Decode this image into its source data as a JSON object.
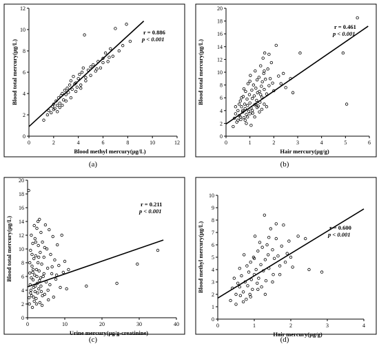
{
  "chart_data": [
    {
      "id": "a",
      "type": "scatter",
      "caption": "(a)",
      "xlabel": "Blood methyl mercury(μg/L)",
      "ylabel": "Blood total mercury(μg/L)",
      "xlim": [
        0,
        12
      ],
      "ylim": [
        0,
        12
      ],
      "xticks": [
        0,
        2,
        4,
        6,
        8,
        10,
        12
      ],
      "yticks": [
        0,
        2,
        4,
        6,
        8,
        10,
        12
      ],
      "stat_r": "r = 0.886",
      "stat_p": "p < 0.001",
      "fit": {
        "x": [
          0,
          9.3
        ],
        "y": [
          0.9,
          10.8
        ]
      },
      "points": [
        [
          1.2,
          1.5
        ],
        [
          1.5,
          2.0
        ],
        [
          1.6,
          2.4
        ],
        [
          1.8,
          2.2
        ],
        [
          1.9,
          2.8
        ],
        [
          2.0,
          3.0
        ],
        [
          2.1,
          2.6
        ],
        [
          2.2,
          3.3
        ],
        [
          2.3,
          2.9
        ],
        [
          2.4,
          3.6
        ],
        [
          2.5,
          3.1
        ],
        [
          2.6,
          3.8
        ],
        [
          2.7,
          4.0
        ],
        [
          2.8,
          3.4
        ],
        [
          2.9,
          4.3
        ],
        [
          3.0,
          3.9
        ],
        [
          3.1,
          4.5
        ],
        [
          3.2,
          4.1
        ],
        [
          3.3,
          4.8
        ],
        [
          3.4,
          5.2
        ],
        [
          3.5,
          4.4
        ],
        [
          3.6,
          5.6
        ],
        [
          3.7,
          4.9
        ],
        [
          3.8,
          5.0
        ],
        [
          3.9,
          4.6
        ],
        [
          4.0,
          5.4
        ],
        [
          4.1,
          5.8
        ],
        [
          4.2,
          4.5
        ],
        [
          4.3,
          6.0
        ],
        [
          4.4,
          6.4
        ],
        [
          4.5,
          9.5
        ],
        [
          4.6,
          5.5
        ],
        [
          4.8,
          6.2
        ],
        [
          5.0,
          6.5
        ],
        [
          5.2,
          6.7
        ],
        [
          5.4,
          6.1
        ],
        [
          5.6,
          7.0
        ],
        [
          5.8,
          6.4
        ],
        [
          6.0,
          7.3
        ],
        [
          6.2,
          7.8
        ],
        [
          6.4,
          7.0
        ],
        [
          6.6,
          8.2
        ],
        [
          6.8,
          7.5
        ],
        [
          7.0,
          10.1
        ],
        [
          7.3,
          8.0
        ],
        [
          7.6,
          8.5
        ],
        [
          7.9,
          10.5
        ],
        [
          8.2,
          8.9
        ],
        [
          2.3,
          2.3
        ],
        [
          2.7,
          2.9
        ],
        [
          3.0,
          3.3
        ],
        [
          3.4,
          3.6
        ],
        [
          3.8,
          4.2
        ],
        [
          4.2,
          4.8
        ],
        [
          4.6,
          5.2
        ],
        [
          5.0,
          5.7
        ],
        [
          5.5,
          6.3
        ],
        [
          6.0,
          6.9
        ],
        [
          6.5,
          7.4
        ],
        [
          2.0,
          2.5
        ],
        [
          2.5,
          2.7
        ]
      ]
    },
    {
      "id": "b",
      "type": "scatter",
      "caption": "(b)",
      "xlabel": "Hair mercury(μg/g)",
      "ylabel": "Blood total mercury(μg/L)",
      "xlim": [
        0,
        6
      ],
      "ylim": [
        0,
        20
      ],
      "xticks": [
        0,
        1,
        2,
        3,
        4,
        5,
        6
      ],
      "yticks": [
        0,
        2,
        4,
        6,
        8,
        10,
        12,
        14,
        16,
        18,
        20
      ],
      "stat_r": "r = 0.461",
      "stat_p": "p < 0.001",
      "fit": {
        "x": [
          0,
          5.95
        ],
        "y": [
          1.9,
          17.2
        ]
      },
      "points": [
        [
          0.3,
          1.5
        ],
        [
          0.35,
          2.8
        ],
        [
          0.4,
          3.5
        ],
        [
          0.45,
          2.2
        ],
        [
          0.5,
          4.0
        ],
        [
          0.55,
          3.2
        ],
        [
          0.6,
          5.5
        ],
        [
          0.62,
          2.6
        ],
        [
          0.65,
          4.6
        ],
        [
          0.7,
          3.8
        ],
        [
          0.72,
          6.2
        ],
        [
          0.75,
          2.9
        ],
        [
          0.78,
          5.0
        ],
        [
          0.8,
          4.3
        ],
        [
          0.82,
          7.0
        ],
        [
          0.85,
          3.4
        ],
        [
          0.88,
          5.8
        ],
        [
          0.9,
          4.8
        ],
        [
          0.92,
          8.2
        ],
        [
          0.95,
          3.9
        ],
        [
          0.98,
          6.5
        ],
        [
          1.0,
          5.2
        ],
        [
          1.02,
          9.5
        ],
        [
          1.05,
          4.4
        ],
        [
          1.08,
          7.2
        ],
        [
          1.1,
          5.9
        ],
        [
          1.12,
          3.6
        ],
        [
          1.15,
          8.0
        ],
        [
          1.18,
          6.3
        ],
        [
          1.2,
          4.9
        ],
        [
          1.22,
          10.2
        ],
        [
          1.25,
          7.5
        ],
        [
          1.28,
          5.6
        ],
        [
          1.3,
          8.8
        ],
        [
          1.32,
          6.8
        ],
        [
          1.35,
          4.7
        ],
        [
          1.38,
          9.2
        ],
        [
          1.4,
          7.0
        ],
        [
          1.42,
          5.3
        ],
        [
          1.45,
          11.0
        ],
        [
          1.48,
          7.8
        ],
        [
          1.5,
          6.1
        ],
        [
          1.52,
          8.5
        ],
        [
          1.55,
          12.2
        ],
        [
          1.58,
          9.8
        ],
        [
          1.6,
          7.3
        ],
        [
          1.62,
          13.0
        ],
        [
          1.65,
          8.9
        ],
        [
          1.7,
          6.6
        ],
        [
          1.75,
          10.5
        ],
        [
          1.8,
          7.9
        ],
        [
          1.85,
          9.0
        ],
        [
          1.9,
          11.5
        ],
        [
          1.95,
          8.3
        ],
        [
          2.0,
          7.1
        ],
        [
          2.1,
          14.2
        ],
        [
          2.2,
          9.4
        ],
        [
          2.3,
          8.2
        ],
        [
          2.5,
          7.6
        ],
        [
          2.7,
          9.0
        ],
        [
          2.8,
          6.8
        ],
        [
          3.1,
          13.0
        ],
        [
          4.9,
          13.0
        ],
        [
          5.05,
          5.0
        ],
        [
          5.5,
          18.5
        ],
        [
          0.5,
          2.5
        ],
        [
          0.6,
          3.0
        ],
        [
          0.7,
          4.0
        ],
        [
          0.8,
          2.5
        ],
        [
          0.9,
          3.0
        ],
        [
          1.0,
          3.5
        ],
        [
          1.1,
          4.0
        ],
        [
          1.2,
          3.0
        ],
        [
          1.3,
          4.5
        ],
        [
          1.4,
          3.8
        ],
        [
          1.5,
          4.2
        ],
        [
          1.6,
          5.0
        ],
        [
          1.7,
          4.6
        ],
        [
          0.4,
          4.6
        ],
        [
          0.55,
          5.0
        ],
        [
          0.65,
          6.0
        ],
        [
          0.75,
          7.4
        ],
        [
          1.0,
          8.6
        ],
        [
          1.25,
          5.0
        ],
        [
          1.45,
          6.5
        ],
        [
          1.6,
          10.2
        ],
        [
          1.8,
          12.8
        ],
        [
          2.4,
          9.8
        ],
        [
          0.85,
          2.0
        ],
        [
          1.05,
          1.7
        ]
      ]
    },
    {
      "id": "c",
      "type": "scatter",
      "caption": "(c)",
      "xlabel": "Urine mercury(μg/g-creatinine)",
      "ylabel": "Blood total mercury(μg/L)",
      "xlim": [
        0,
        40
      ],
      "ylim": [
        0,
        20
      ],
      "xticks": [
        0,
        10,
        20,
        30,
        40
      ],
      "yticks": [
        0,
        2,
        4,
        6,
        8,
        10,
        12,
        14,
        16,
        18,
        20
      ],
      "stat_r": "r = 0.211",
      "stat_p": "p < 0.001",
      "fit": {
        "x": [
          0,
          36.5
        ],
        "y": [
          4.5,
          11.3
        ]
      },
      "points": [
        [
          0.3,
          18.5
        ],
        [
          0.5,
          2.0
        ],
        [
          0.6,
          6.5
        ],
        [
          0.8,
          9.8
        ],
        [
          0.9,
          4.0
        ],
        [
          1.0,
          12.0
        ],
        [
          1.1,
          3.2
        ],
        [
          1.2,
          7.5
        ],
        [
          1.3,
          1.5
        ],
        [
          1.4,
          10.8
        ],
        [
          1.5,
          5.5
        ],
        [
          1.6,
          3.0
        ],
        [
          1.7,
          8.6
        ],
        [
          1.8,
          2.4
        ],
        [
          1.9,
          6.2
        ],
        [
          2.0,
          11.5
        ],
        [
          2.1,
          4.6
        ],
        [
          2.2,
          9.0
        ],
        [
          2.3,
          2.8
        ],
        [
          2.4,
          7.0
        ],
        [
          2.5,
          13.0
        ],
        [
          2.6,
          5.0
        ],
        [
          2.7,
          3.6
        ],
        [
          2.8,
          8.0
        ],
        [
          2.9,
          10.5
        ],
        [
          3.0,
          4.2
        ],
        [
          3.1,
          6.8
        ],
        [
          3.2,
          14.3
        ],
        [
          3.3,
          2.2
        ],
        [
          3.4,
          9.5
        ],
        [
          3.5,
          5.8
        ],
        [
          3.6,
          12.4
        ],
        [
          3.7,
          3.8
        ],
        [
          3.8,
          7.8
        ],
        [
          3.9,
          1.8
        ],
        [
          4.0,
          11.0
        ],
        [
          4.2,
          6.0
        ],
        [
          4.4,
          8.8
        ],
        [
          4.6,
          3.4
        ],
        [
          4.8,
          13.5
        ],
        [
          5.0,
          5.2
        ],
        [
          5.2,
          10.0
        ],
        [
          5.4,
          7.2
        ],
        [
          5.6,
          2.6
        ],
        [
          5.8,
          12.8
        ],
        [
          6.0,
          4.8
        ],
        [
          6.2,
          9.2
        ],
        [
          6.5,
          6.4
        ],
        [
          6.8,
          11.8
        ],
        [
          7.0,
          3.0
        ],
        [
          7.3,
          8.4
        ],
        [
          7.6,
          5.6
        ],
        [
          8.0,
          10.6
        ],
        [
          8.4,
          7.6
        ],
        [
          8.8,
          4.4
        ],
        [
          9.2,
          12.0
        ],
        [
          9.6,
          6.6
        ],
        [
          10.0,
          8.2
        ],
        [
          10.5,
          4.2
        ],
        [
          11.0,
          7.0
        ],
        [
          15.8,
          4.6
        ],
        [
          24.0,
          5.0
        ],
        [
          29.5,
          7.8
        ],
        [
          35.0,
          9.8
        ],
        [
          0.7,
          4.8
        ],
        [
          1.0,
          5.8
        ],
        [
          1.5,
          7.0
        ],
        [
          2.0,
          3.8
        ],
        [
          2.5,
          6.0
        ],
        [
          3.0,
          8.8
        ],
        [
          1.2,
          9.2
        ],
        [
          2.2,
          11.0
        ],
        [
          4.4,
          6.4
        ],
        [
          5.5,
          4.0
        ],
        [
          6.6,
          7.4
        ],
        [
          0.4,
          2.9
        ],
        [
          0.8,
          3.6
        ],
        [
          1.6,
          4.4
        ],
        [
          2.4,
          2.0
        ],
        [
          3.2,
          5.4
        ],
        [
          4.0,
          3.2
        ],
        [
          1.8,
          13.4
        ],
        [
          2.8,
          14.0
        ],
        [
          4.6,
          10.2
        ],
        [
          7.8,
          6.2
        ],
        [
          0.6,
          8.0
        ],
        [
          1.4,
          6.6
        ],
        [
          3.6,
          4.6
        ]
      ]
    },
    {
      "id": "d",
      "type": "scatter",
      "caption": "(d)",
      "xlabel": "Hair mercury(μg/g)",
      "ylabel": "Blood methyl mercury(μg/L)",
      "xlim": [
        0,
        4
      ],
      "ylim": [
        0,
        10
      ],
      "xticks": [
        0,
        1,
        2,
        3,
        4
      ],
      "yticks": [
        0,
        1,
        2,
        3,
        4,
        5,
        6,
        7,
        8,
        9,
        10
      ],
      "stat_r": "r = 0.600",
      "stat_p": "p < 0.001",
      "fit": {
        "x": [
          0,
          4.0
        ],
        "y": [
          1.7,
          8.9
        ]
      },
      "points": [
        [
          0.35,
          1.5
        ],
        [
          0.4,
          2.5
        ],
        [
          0.45,
          3.3
        ],
        [
          0.5,
          1.2
        ],
        [
          0.55,
          2.9
        ],
        [
          0.6,
          4.1
        ],
        [
          0.62,
          1.9
        ],
        [
          0.65,
          3.5
        ],
        [
          0.7,
          2.2
        ],
        [
          0.72,
          5.2
        ],
        [
          0.75,
          3.0
        ],
        [
          0.78,
          1.6
        ],
        [
          0.8,
          4.3
        ],
        [
          0.82,
          2.7
        ],
        [
          0.85,
          3.8
        ],
        [
          0.88,
          2.0
        ],
        [
          0.9,
          4.6
        ],
        [
          0.92,
          3.2
        ],
        [
          0.95,
          2.4
        ],
        [
          0.98,
          5.0
        ],
        [
          1.0,
          3.6
        ],
        [
          1.02,
          6.7
        ],
        [
          1.05,
          4.0
        ],
        [
          1.08,
          2.9
        ],
        [
          1.1,
          5.5
        ],
        [
          1.12,
          3.3
        ],
        [
          1.15,
          6.2
        ],
        [
          1.18,
          4.4
        ],
        [
          1.2,
          2.6
        ],
        [
          1.22,
          5.8
        ],
        [
          1.25,
          3.9
        ],
        [
          1.28,
          8.4
        ],
        [
          1.3,
          4.8
        ],
        [
          1.32,
          3.1
        ],
        [
          1.35,
          6.0
        ],
        [
          1.38,
          5.2
        ],
        [
          1.4,
          4.1
        ],
        [
          1.45,
          7.3
        ],
        [
          1.5,
          5.6
        ],
        [
          1.52,
          3.6
        ],
        [
          1.55,
          4.9
        ],
        [
          1.6,
          6.5
        ],
        [
          1.65,
          5.1
        ],
        [
          1.7,
          4.3
        ],
        [
          1.75,
          5.9
        ],
        [
          1.8,
          7.6
        ],
        [
          1.85,
          4.6
        ],
        [
          1.9,
          5.3
        ],
        [
          1.95,
          6.3
        ],
        [
          2.0,
          5.0
        ],
        [
          2.05,
          4.2
        ],
        [
          2.2,
          6.7
        ],
        [
          2.4,
          6.5
        ],
        [
          2.5,
          4.0
        ],
        [
          2.85,
          3.8
        ],
        [
          0.5,
          2.0
        ],
        [
          0.7,
          1.4
        ],
        [
          0.9,
          1.8
        ],
        [
          1.1,
          2.4
        ],
        [
          1.3,
          2.0
        ],
        [
          1.5,
          3.0
        ],
        [
          1.7,
          3.6
        ],
        [
          0.6,
          2.6
        ],
        [
          1.0,
          4.9
        ],
        [
          1.4,
          6.6
        ],
        [
          1.6,
          7.7
        ]
      ]
    }
  ]
}
